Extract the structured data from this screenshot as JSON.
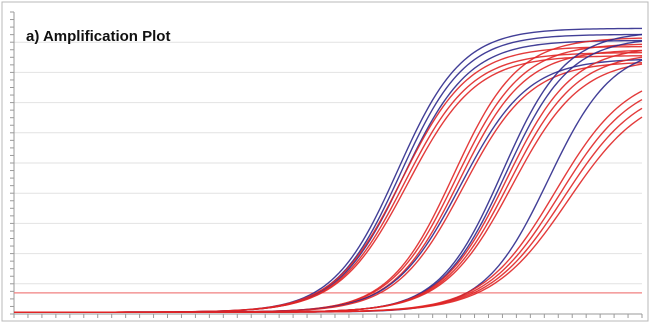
{
  "chart_data": {
    "type": "line",
    "title": "a) Amplification Plot",
    "xlabel": "",
    "ylabel": "",
    "grid": true,
    "legend": "none",
    "xlim": [
      0,
      45
    ],
    "ylim": [
      0,
      100
    ],
    "threshold": 7,
    "colors": {
      "blue": "#2e2a8c",
      "red": "#e02626",
      "threshold": "#f08080",
      "grid": "#e2e2e2"
    },
    "series": [
      {
        "color": "blue",
        "midpoint": 27.5,
        "slope": 2.3,
        "plateau": 94
      },
      {
        "color": "blue",
        "midpoint": 27.7,
        "slope": 2.3,
        "plateau": 92
      },
      {
        "color": "blue",
        "midpoint": 27.9,
        "slope": 2.35,
        "plateau": 90
      },
      {
        "color": "red",
        "midpoint": 27.8,
        "slope": 2.4,
        "plateau": 88
      },
      {
        "color": "red",
        "midpoint": 28.0,
        "slope": 2.4,
        "plateau": 86
      },
      {
        "color": "red",
        "midpoint": 28.2,
        "slope": 2.45,
        "plateau": 85
      },
      {
        "color": "red",
        "midpoint": 31.5,
        "slope": 2.3,
        "plateau": 91
      },
      {
        "color": "red",
        "midpoint": 31.7,
        "slope": 2.35,
        "plateau": 89
      },
      {
        "color": "red",
        "midpoint": 31.9,
        "slope": 2.35,
        "plateau": 87
      },
      {
        "color": "blue",
        "midpoint": 32.0,
        "slope": 2.4,
        "plateau": 84
      },
      {
        "color": "red",
        "midpoint": 32.2,
        "slope": 2.4,
        "plateau": 83
      },
      {
        "color": "blue",
        "midpoint": 35.0,
        "slope": 2.25,
        "plateau": 93
      },
      {
        "color": "blue",
        "midpoint": 35.2,
        "slope": 2.3,
        "plateau": 91
      },
      {
        "color": "red",
        "midpoint": 35.3,
        "slope": 2.35,
        "plateau": 88
      },
      {
        "color": "red",
        "midpoint": 35.5,
        "slope": 2.4,
        "plateau": 86
      },
      {
        "color": "red",
        "midpoint": 35.7,
        "slope": 2.45,
        "plateau": 84
      },
      {
        "color": "blue",
        "midpoint": 38.3,
        "slope": 2.3,
        "plateau": 88
      },
      {
        "color": "red",
        "midpoint": 38.8,
        "slope": 2.6,
        "plateau": 80
      },
      {
        "color": "red",
        "midpoint": 39.1,
        "slope": 2.65,
        "plateau": 78
      },
      {
        "color": "red",
        "midpoint": 39.4,
        "slope": 2.7,
        "plateau": 76
      },
      {
        "color": "red",
        "midpoint": 39.7,
        "slope": 2.75,
        "plateau": 74
      }
    ]
  }
}
